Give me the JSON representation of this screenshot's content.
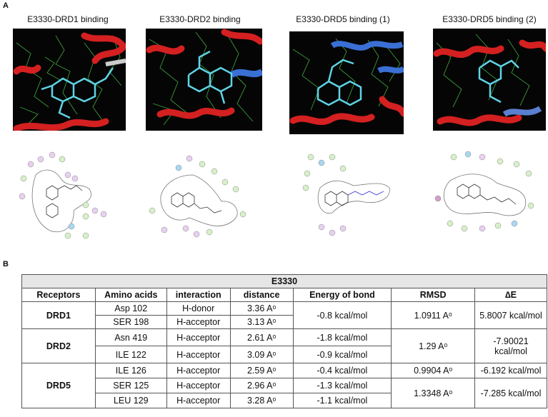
{
  "panel_a": {
    "letter": "A",
    "panels": [
      {
        "title": "E3330-DRD1 binding"
      },
      {
        "title": "E3330-DRD2 binding"
      },
      {
        "title": "E3330-DRD5 binding (1)"
      },
      {
        "title": "E3330-DRD5 binding (2)"
      }
    ]
  },
  "panel_b": {
    "letter": "B",
    "table_title": "E3330",
    "headers": [
      "Receptors",
      "Amino acids",
      "interaction",
      "distance",
      "Energy of bond",
      "RMSD",
      "∆E"
    ],
    "drd1": {
      "receptor": "DRD1",
      "rmsd": "1.0911 Aᵒ",
      "de": "5.8007 kcal/mol",
      "energy": "-0.8 kcal/mol",
      "rows": [
        {
          "aa": "Asp 102",
          "interaction": "H-donor",
          "distance": "3.36 Aᵒ"
        },
        {
          "aa": "SER 198",
          "interaction": "H-acceptor",
          "distance": "3.13 Aᵒ"
        }
      ]
    },
    "drd2": {
      "receptor": "DRD2",
      "rmsd": "1.29 Aᵒ",
      "de": "-7.90021 kcal/mol",
      "rows": [
        {
          "aa": "Asn 419",
          "interaction": "H-acceptor",
          "distance": "2.61 Aᵒ",
          "energy": "-1.8 kcal/mol"
        },
        {
          "aa": "ILE 122",
          "interaction": "H-acceptor",
          "distance": "3.09 Aᵒ",
          "energy": "-0.9 kcal/mol"
        }
      ]
    },
    "drd5": {
      "receptor": "DRD5",
      "rmsd1": "0.9904 Aᵒ",
      "de1": "-6.192 kcal/mol",
      "rmsd2": "1.3348 Aᵒ",
      "de2": "-7.285 kcal/mol",
      "rows": [
        {
          "aa": "ILE 126",
          "interaction": "H-acceptor",
          "distance": "2.59 Aᵒ",
          "energy": "-0.4 kcal/mol"
        },
        {
          "aa": "SER 125",
          "interaction": "H-acceptor",
          "distance": "2.96 Aᵒ",
          "energy": "-1.3 kcal/mol"
        },
        {
          "aa": "LEU 129",
          "interaction": "H-acceptor",
          "distance": "3.28 Aᵒ",
          "energy": "-1.1 kcal/mol"
        }
      ]
    }
  }
}
